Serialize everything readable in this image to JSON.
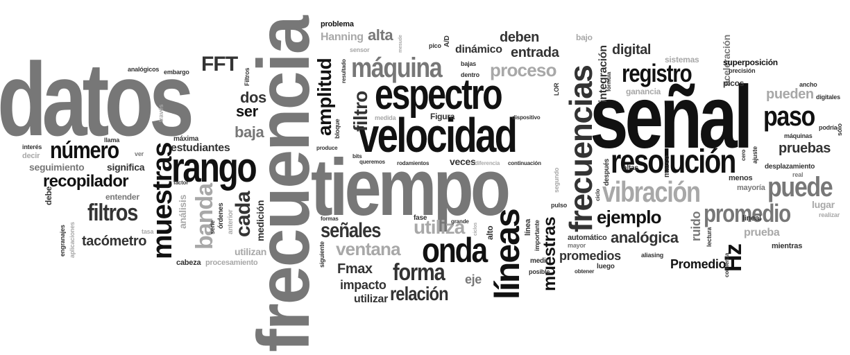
{
  "palette": {
    "black": "#111111",
    "dark": "#333333",
    "mid": "#777777",
    "light": "#a8a8a8",
    "pale": "#c8c8c8"
  },
  "words": [
    {
      "id": "datos",
      "text": "datos"
    },
    {
      "id": "frecuencia",
      "text": "frecuencia"
    },
    {
      "id": "tiempo",
      "text": "tiempo"
    },
    {
      "id": "senal",
      "text": "señal"
    },
    {
      "id": "velocidad",
      "text": "velocidad"
    },
    {
      "id": "espectro",
      "text": "espectro"
    },
    {
      "id": "frecuencias",
      "text": "frecuencias"
    },
    {
      "id": "resolucion",
      "text": "resolución"
    },
    {
      "id": "rango",
      "text": "rango"
    },
    {
      "id": "maquina",
      "text": "máquina"
    },
    {
      "id": "lineas",
      "text": "líneas"
    },
    {
      "id": "onda",
      "text": "onda"
    },
    {
      "id": "muestras",
      "text": "muestras"
    },
    {
      "id": "muestras2",
      "text": "muestras"
    },
    {
      "id": "vibracion",
      "text": "vibración"
    },
    {
      "id": "puede",
      "text": "puede"
    },
    {
      "id": "paso",
      "text": "paso"
    },
    {
      "id": "registro",
      "text": "registro"
    },
    {
      "id": "promedio",
      "text": "promedio"
    },
    {
      "id": "amplitud",
      "text": "amplitud"
    },
    {
      "id": "numero",
      "text": "número"
    },
    {
      "id": "filtros",
      "text": "filtros"
    },
    {
      "id": "forma",
      "text": "forma"
    },
    {
      "id": "senales",
      "text": "señales"
    },
    {
      "id": "ventana",
      "text": "ventana"
    },
    {
      "id": "utiliza",
      "text": "utiliza"
    },
    {
      "id": "relacion",
      "text": "relación"
    },
    {
      "id": "ejemplo",
      "text": "ejemplo"
    },
    {
      "id": "analogica",
      "text": "analógica"
    },
    {
      "id": "recopilador",
      "text": "recopilador"
    },
    {
      "id": "banda",
      "text": "banda"
    },
    {
      "id": "cada",
      "text": "cada"
    },
    {
      "id": "muestra",
      "text": "muestra"
    },
    {
      "id": "hz",
      "text": "Hz"
    },
    {
      "id": "fft",
      "text": "FFT"
    },
    {
      "id": "proceso",
      "text": "proceso"
    },
    {
      "id": "entrada",
      "text": "entrada"
    },
    {
      "id": "deben",
      "text": "deben"
    },
    {
      "id": "alta",
      "text": "alta"
    },
    {
      "id": "digital",
      "text": "digital"
    },
    {
      "id": "pruebas",
      "text": "pruebas"
    },
    {
      "id": "pueden",
      "text": "pueden"
    },
    {
      "id": "filtro",
      "text": "filtro"
    },
    {
      "id": "dos",
      "text": "dos"
    },
    {
      "id": "ser",
      "text": "ser"
    },
    {
      "id": "baja",
      "text": "baja"
    },
    {
      "id": "estudiantes",
      "text": "estudiantes"
    },
    {
      "id": "tacometro",
      "text": "tacómetro"
    },
    {
      "id": "promedios",
      "text": "promedios"
    },
    {
      "id": "Promedio",
      "text": "Promedio"
    },
    {
      "id": "Fmax",
      "text": "Fmax"
    },
    {
      "id": "impacto",
      "text": "impacto"
    },
    {
      "id": "utilizar",
      "text": "utilizar"
    },
    {
      "id": "eje",
      "text": "eje"
    },
    {
      "id": "veces",
      "text": "veces"
    },
    {
      "id": "ruido",
      "text": "ruido"
    },
    {
      "id": "prueba",
      "text": "prueba"
    },
    {
      "id": "lugar",
      "text": "lugar"
    },
    {
      "id": "integracion",
      "text": "integración"
    },
    {
      "id": "dinamico",
      "text": "dinámico"
    },
    {
      "id": "hanning",
      "text": "Hanning"
    },
    {
      "id": "problema",
      "text": "problema"
    },
    {
      "id": "bajo",
      "text": "bajo"
    },
    {
      "id": "seguimiento",
      "text": "seguimiento"
    },
    {
      "id": "significa",
      "text": "significa"
    },
    {
      "id": "entender",
      "text": "entender"
    },
    {
      "id": "analisis",
      "text": "análisis"
    },
    {
      "id": "medicion",
      "text": "medición"
    },
    {
      "id": "utilizan",
      "text": "utilizan"
    },
    {
      "id": "cabeza",
      "text": "cabeza"
    },
    {
      "id": "procesamiento",
      "text": "procesamiento"
    },
    {
      "id": "automatico",
      "text": "automático"
    },
    {
      "id": "aceleracion",
      "text": "aceleración"
    },
    {
      "id": "superposicion",
      "text": "superposición"
    },
    {
      "id": "sistemas",
      "text": "sistemas"
    },
    {
      "id": "ganancia",
      "text": "ganancia"
    },
    {
      "id": "picos",
      "text": "picos"
    },
    {
      "id": "desplazamiento",
      "text": "desplazamiento"
    },
    {
      "id": "mayoria",
      "text": "mayoría"
    },
    {
      "id": "menos",
      "text": "menos"
    },
    {
      "id": "lineal",
      "text": "lineal"
    },
    {
      "id": "mientras",
      "text": "mientras"
    },
    {
      "id": "realizar",
      "text": "realizar"
    },
    {
      "id": "maxima",
      "text": "máxima"
    },
    {
      "id": "interes",
      "text": "interés"
    },
    {
      "id": "decir",
      "text": "decir"
    },
    {
      "id": "debe",
      "text": "debe"
    },
    {
      "id": "engranajes",
      "text": "engranajes"
    },
    {
      "id": "aplicaciones",
      "text": "aplicaciones"
    },
    {
      "id": "factor",
      "text": "factor"
    },
    {
      "id": "tasa",
      "text": "tasa"
    },
    {
      "id": "serie",
      "text": "serie"
    },
    {
      "id": "ordenes",
      "text": "órdenes"
    },
    {
      "id": "anterior",
      "text": "anterior"
    },
    {
      "id": "analogicos",
      "text": "analógicos"
    },
    {
      "id": "embargo",
      "text": "embargo"
    },
    {
      "id": "filtros2",
      "text": "Filtros"
    },
    {
      "id": "traves",
      "text": "través"
    },
    {
      "id": "llama",
      "text": "llama"
    },
    {
      "id": "ver",
      "text": "ver"
    },
    {
      "id": "fase",
      "text": "fase"
    },
    {
      "id": "formas",
      "text": "formas"
    },
    {
      "id": "siguiente",
      "text": "siguiente"
    },
    {
      "id": "grande",
      "text": "grande"
    },
    {
      "id": "continuacion",
      "text": "continuación"
    },
    {
      "id": "segundo",
      "text": "segundo"
    },
    {
      "id": "alto",
      "text": "alto"
    },
    {
      "id": "linea",
      "text": "línea"
    },
    {
      "id": "importante",
      "text": "importante"
    },
    {
      "id": "medir",
      "text": "medir"
    },
    {
      "id": "posible",
      "text": "posible"
    },
    {
      "id": "mayor",
      "text": "mayor"
    },
    {
      "id": "obtener",
      "text": "obtener"
    },
    {
      "id": "luego",
      "text": "luego"
    },
    {
      "id": "aliasing",
      "text": "aliasing"
    },
    {
      "id": "pulso",
      "text": "pulso"
    },
    {
      "id": "ciclo",
      "text": "ciclo"
    },
    {
      "id": "despues",
      "text": "después"
    },
    {
      "id": "altas",
      "text": "altas"
    },
    {
      "id": "marco",
      "text": "marco"
    },
    {
      "id": "ajuste",
      "text": "ajuste"
    },
    {
      "id": "cero",
      "text": "cero"
    },
    {
      "id": "real",
      "text": "real"
    },
    {
      "id": "maquinas",
      "text": "máquinas"
    },
    {
      "id": "podria",
      "text": "podría"
    },
    {
      "id": "solo",
      "text": "sólo"
    },
    {
      "id": "digitales",
      "text": "digitales"
    },
    {
      "id": "ancho",
      "text": "ancho"
    },
    {
      "id": "precision",
      "text": "precisión"
    },
    {
      "id": "formula",
      "text": "fórmula"
    },
    {
      "id": "lectura",
      "text": "lectura"
    },
    {
      "id": "comienza",
      "text": "comienza"
    },
    {
      "id": "sensor",
      "text": "sensor"
    },
    {
      "id": "resultado",
      "text": "resultado"
    },
    {
      "id": "bloque",
      "text": "bloque"
    },
    {
      "id": "produce",
      "text": "produce"
    },
    {
      "id": "bits",
      "text": "bits"
    },
    {
      "id": "queremos",
      "text": "queremos"
    },
    {
      "id": "rodamientos",
      "text": "rodamientos"
    },
    {
      "id": "diferencia",
      "text": "diferencia"
    },
    {
      "id": "ciclos",
      "text": "ciclos"
    },
    {
      "id": "medida",
      "text": "medida"
    },
    {
      "id": "figura",
      "text": "Figura"
    },
    {
      "id": "dispositivo",
      "text": "dispositivo"
    },
    {
      "id": "pico",
      "text": "pico"
    },
    {
      "id": "ad",
      "text": "A/D"
    },
    {
      "id": "bajas",
      "text": "bajas"
    },
    {
      "id": "dentro",
      "text": "dentro"
    },
    {
      "id": "mesude",
      "text": "mesude"
    },
    {
      "id": "lor",
      "text": "LOR"
    }
  ]
}
